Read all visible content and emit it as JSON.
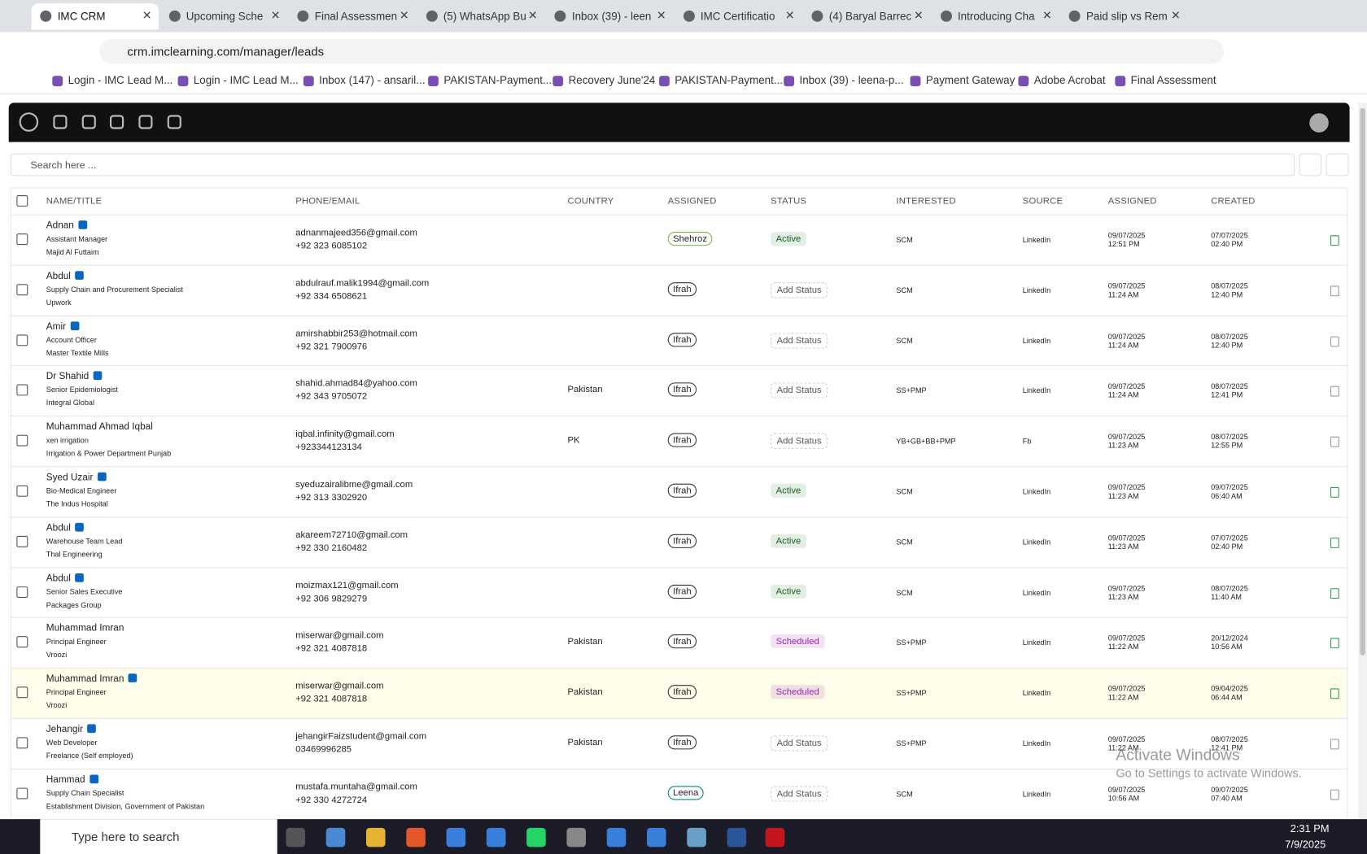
{
  "browser": {
    "tabs": [
      "IMC CRM",
      "Upcoming Sche",
      "Final Assessmen",
      "(5) WhatsApp Bu",
      "Inbox (39) - leen",
      "IMC Certificatio",
      "(4) Baryal Barrec",
      "Introducing Cha",
      "Paid slip vs Rem"
    ],
    "url": "crm.imclearning.com/manager/leads",
    "bookmarks": [
      "Login - IMC Lead M...",
      "Login - IMC Lead M...",
      "Inbox (147) - ansaril...",
      "PAKISTAN-Payment...",
      "Recovery June'24",
      "PAKISTAN-Payment...",
      "Inbox (39) - leena-p...",
      "Payment Gateway",
      "Adobe Acrobat",
      "Final Assessment"
    ]
  },
  "app": {
    "search_placeholder": "Search here ...",
    "columns": [
      "NAME/TITLE",
      "PHONE/EMAIL",
      "COUNTRY",
      "ASSIGNED",
      "STATUS",
      "INTERESTED",
      "SOURCE",
      "ASSIGNED",
      "CREATED"
    ],
    "rows": [
      {
        "name": "Adnan",
        "linkedin": true,
        "title": "Assistant Manager",
        "company": "Majid Al Futtaim",
        "email": "adnanmajeed356@gmail.com",
        "phone": "+92 323 6085102",
        "country": null,
        "assigned": "Shehroz",
        "assigned_color": "#7cb342",
        "status": "Active",
        "status_color": "#2e7d32",
        "interested": "SCM",
        "source": "LinkedIn",
        "assigned_date": "09/07/2025",
        "assigned_time": "12:51 PM",
        "created_date": "07/07/2025",
        "created_time": "02:40 PM",
        "icon_color": "#2e9e4f"
      },
      {
        "name": "Abdul",
        "linkedin": true,
        "title": "Supply Chain and Procurement Specialist",
        "company": "Upwork",
        "email": "abdulrauf.malik1994@gmail.com",
        "phone": "+92 334 6508621",
        "country": null,
        "assigned": "Ifrah",
        "assigned_color": "#333333",
        "status": "Add Status",
        "status_color": "#777777",
        "interested": "SCM",
        "source": "LinkedIn",
        "assigned_date": "09/07/2025",
        "assigned_time": "11:24 AM",
        "created_date": "08/07/2025",
        "created_time": "12:40 PM",
        "icon_color": "#999999"
      },
      {
        "name": "Amir",
        "linkedin": true,
        "title": "Account Officer",
        "company": "Master Textile Mills",
        "email": "amirshabbir253@hotmail.com",
        "phone": "+92 321 7900976",
        "country": null,
        "assigned": "Ifrah",
        "assigned_color": "#333333",
        "status": "Add Status",
        "status_color": "#777777",
        "interested": "SCM",
        "source": "LinkedIn",
        "assigned_date": "09/07/2025",
        "assigned_time": "11:24 AM",
        "created_date": "08/07/2025",
        "created_time": "12:40 PM",
        "icon_color": "#999999"
      },
      {
        "name": "Dr Shahid",
        "linkedin": true,
        "title": "Senior Epidemiologist",
        "company": "Integral Global",
        "email": "shahid.ahmad84@yahoo.com",
        "phone": "+92 343 9705072",
        "country": "Pakistan",
        "assigned": "Ifrah",
        "assigned_color": "#333333",
        "status": "Add Status",
        "status_color": "#777777",
        "interested": "SS+PMP",
        "source": "LinkedIn",
        "assigned_date": "09/07/2025",
        "assigned_time": "11:24 AM",
        "created_date": "08/07/2025",
        "created_time": "12:41 PM",
        "icon_color": "#999999"
      },
      {
        "name": "Muhammad Ahmad Iqbal",
        "linkedin": false,
        "title": "xen irrigation",
        "company": "Irrigation & Power Department Punjab",
        "email": "iqbal.infinity@gmail.com",
        "phone": "+923344123134",
        "country": "PK",
        "assigned": "Ifrah",
        "assigned_color": "#333333",
        "status": "Add Status",
        "status_color": "#777777",
        "interested": "YB+GB+BB+PMP",
        "source": "Fb",
        "assigned_date": "09/07/2025",
        "assigned_time": "11:23 AM",
        "created_date": "08/07/2025",
        "created_time": "12:55 PM",
        "icon_color": "#999999"
      },
      {
        "name": "Syed Uzair",
        "linkedin": true,
        "title": "Bio-Medical Engineer",
        "company": "The Indus Hospital",
        "email": "syeduzairalibme@gmail.com",
        "phone": "+92 313 3302920",
        "country": null,
        "assigned": "Ifrah",
        "assigned_color": "#333333",
        "status": "Active",
        "status_color": "#2e7d32",
        "interested": "SCM",
        "source": "LinkedIn",
        "assigned_date": "09/07/2025",
        "assigned_time": "11:23 AM",
        "created_date": "09/07/2025",
        "created_time": "06:40 AM",
        "icon_color": "#2e9e4f"
      },
      {
        "name": "Abdul",
        "linkedin": true,
        "title": "Warehouse Team Lead",
        "company": "Thal Engineering",
        "email": "akareem72710@gmail.com",
        "phone": "+92 330 2160482",
        "country": null,
        "assigned": "Ifrah",
        "assigned_color": "#333333",
        "status": "Active",
        "status_color": "#2e7d32",
        "interested": "SCM",
        "source": "LinkedIn",
        "assigned_date": "09/07/2025",
        "assigned_time": "11:23 AM",
        "created_date": "07/07/2025",
        "created_time": "02:40 PM",
        "icon_color": "#2e9e4f"
      },
      {
        "name": "Abdul",
        "linkedin": true,
        "title": "Senior Sales Executive",
        "company": "Packages Group",
        "email": "moizmax121@gmail.com",
        "phone": "+92 306 9829279",
        "country": null,
        "assigned": "Ifrah",
        "assigned_color": "#333333",
        "status": "Active",
        "status_color": "#2e7d32",
        "interested": "SCM",
        "source": "LinkedIn",
        "assigned_date": "09/07/2025",
        "assigned_time": "11:23 AM",
        "created_date": "08/07/2025",
        "created_time": "11:40 AM",
        "icon_color": "#2e9e4f"
      },
      {
        "name": "Muhammad Imran",
        "linkedin": false,
        "title": "Principal Engineer",
        "company": "Vroozi",
        "email": "miserwar@gmail.com",
        "phone": "+92 321 4087818",
        "country": "Pakistan",
        "assigned": "Ifrah",
        "assigned_color": "#333333",
        "status": "Scheduled",
        "status_color": "#9c27b0",
        "interested": "SS+PMP",
        "source": "LinkedIn",
        "assigned_date": "09/07/2025",
        "assigned_time": "11:22 AM",
        "created_date": "20/12/2024",
        "created_time": "10:56 AM",
        "icon_color": "#2e9e4f"
      },
      {
        "name": "Muhammad Imran",
        "linkedin": true,
        "title": "Principal Engineer",
        "company": "Vroozi",
        "email": "miserwar@gmail.com",
        "phone": "+92 321 4087818",
        "country": "Pakistan",
        "assigned": "Ifrah",
        "assigned_color": "#333333",
        "status": "Scheduled",
        "status_color": "#9c27b0",
        "interested": "SS+PMP",
        "source": "LinkedIn",
        "assigned_date": "09/07/2025",
        "assigned_time": "11:22 AM",
        "created_date": "09/04/2025",
        "created_time": "06:44 AM",
        "icon_color": "#2e9e4f",
        "background": "#fdfde9"
      },
      {
        "name": "Jehangir",
        "linkedin": true,
        "title": "Web Developer",
        "company": "Freelance (Self employed)",
        "email": "jehangirFaizstudent@gmail.com",
        "phone": "03469996285",
        "country": "Pakistan",
        "assigned": "Ifrah",
        "assigned_color": "#333333",
        "status": "Add Status",
        "status_color": "#777777",
        "interested": "SS+PMP",
        "source": "LinkedIn",
        "assigned_date": "09/07/2025",
        "assigned_time": "11:22 AM",
        "created_date": "08/07/2025",
        "created_time": "12:41 PM",
        "icon_color": "#999999"
      },
      {
        "name": "Hammad",
        "linkedin": true,
        "title": "Supply Chain Specialist",
        "company": "Establishment Division, Government of Pakistan",
        "email": "mustafa.muntaha@gmail.com",
        "phone": "+92 330 4272724",
        "country": null,
        "assigned": "Leena",
        "assigned_color": "#00897b",
        "status": "Add Status",
        "status_color": "#777777",
        "interested": "SCM",
        "source": "LinkedIn",
        "assigned_date": "09/07/2025",
        "assigned_time": "10:56 AM",
        "created_date": "09/07/2025",
        "created_time": "07:40 AM",
        "icon_color": "#999999"
      }
    ]
  },
  "watermark": {
    "title": "Activate Windows",
    "text": "Go to Settings to activate Windows."
  },
  "taskbar": {
    "search_placeholder": "Type here to search",
    "time": "2:31 PM",
    "date": "7/9/2025"
  }
}
